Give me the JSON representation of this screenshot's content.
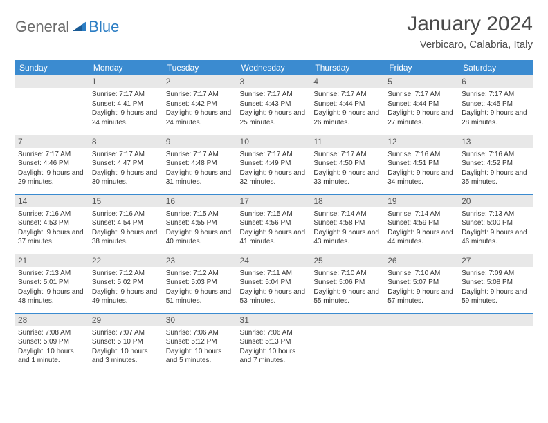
{
  "logo": {
    "general": "General",
    "blue": "Blue"
  },
  "title": "January 2024",
  "location": "Verbicaro, Calabria, Italy",
  "colors": {
    "header_bg": "#3b8bd0",
    "header_text": "#ffffff",
    "daynum_bg": "#e8e8e8",
    "border": "#3b8bd0",
    "text": "#333333"
  },
  "weekdays": [
    "Sunday",
    "Monday",
    "Tuesday",
    "Wednesday",
    "Thursday",
    "Friday",
    "Saturday"
  ],
  "weeks": [
    [
      {
        "n": "",
        "sunrise": "",
        "sunset": "",
        "daylight": ""
      },
      {
        "n": "1",
        "sunrise": "Sunrise: 7:17 AM",
        "sunset": "Sunset: 4:41 PM",
        "daylight": "Daylight: 9 hours and 24 minutes."
      },
      {
        "n": "2",
        "sunrise": "Sunrise: 7:17 AM",
        "sunset": "Sunset: 4:42 PM",
        "daylight": "Daylight: 9 hours and 24 minutes."
      },
      {
        "n": "3",
        "sunrise": "Sunrise: 7:17 AM",
        "sunset": "Sunset: 4:43 PM",
        "daylight": "Daylight: 9 hours and 25 minutes."
      },
      {
        "n": "4",
        "sunrise": "Sunrise: 7:17 AM",
        "sunset": "Sunset: 4:44 PM",
        "daylight": "Daylight: 9 hours and 26 minutes."
      },
      {
        "n": "5",
        "sunrise": "Sunrise: 7:17 AM",
        "sunset": "Sunset: 4:44 PM",
        "daylight": "Daylight: 9 hours and 27 minutes."
      },
      {
        "n": "6",
        "sunrise": "Sunrise: 7:17 AM",
        "sunset": "Sunset: 4:45 PM",
        "daylight": "Daylight: 9 hours and 28 minutes."
      }
    ],
    [
      {
        "n": "7",
        "sunrise": "Sunrise: 7:17 AM",
        "sunset": "Sunset: 4:46 PM",
        "daylight": "Daylight: 9 hours and 29 minutes."
      },
      {
        "n": "8",
        "sunrise": "Sunrise: 7:17 AM",
        "sunset": "Sunset: 4:47 PM",
        "daylight": "Daylight: 9 hours and 30 minutes."
      },
      {
        "n": "9",
        "sunrise": "Sunrise: 7:17 AM",
        "sunset": "Sunset: 4:48 PM",
        "daylight": "Daylight: 9 hours and 31 minutes."
      },
      {
        "n": "10",
        "sunrise": "Sunrise: 7:17 AM",
        "sunset": "Sunset: 4:49 PM",
        "daylight": "Daylight: 9 hours and 32 minutes."
      },
      {
        "n": "11",
        "sunrise": "Sunrise: 7:17 AM",
        "sunset": "Sunset: 4:50 PM",
        "daylight": "Daylight: 9 hours and 33 minutes."
      },
      {
        "n": "12",
        "sunrise": "Sunrise: 7:16 AM",
        "sunset": "Sunset: 4:51 PM",
        "daylight": "Daylight: 9 hours and 34 minutes."
      },
      {
        "n": "13",
        "sunrise": "Sunrise: 7:16 AM",
        "sunset": "Sunset: 4:52 PM",
        "daylight": "Daylight: 9 hours and 35 minutes."
      }
    ],
    [
      {
        "n": "14",
        "sunrise": "Sunrise: 7:16 AM",
        "sunset": "Sunset: 4:53 PM",
        "daylight": "Daylight: 9 hours and 37 minutes."
      },
      {
        "n": "15",
        "sunrise": "Sunrise: 7:16 AM",
        "sunset": "Sunset: 4:54 PM",
        "daylight": "Daylight: 9 hours and 38 minutes."
      },
      {
        "n": "16",
        "sunrise": "Sunrise: 7:15 AM",
        "sunset": "Sunset: 4:55 PM",
        "daylight": "Daylight: 9 hours and 40 minutes."
      },
      {
        "n": "17",
        "sunrise": "Sunrise: 7:15 AM",
        "sunset": "Sunset: 4:56 PM",
        "daylight": "Daylight: 9 hours and 41 minutes."
      },
      {
        "n": "18",
        "sunrise": "Sunrise: 7:14 AM",
        "sunset": "Sunset: 4:58 PM",
        "daylight": "Daylight: 9 hours and 43 minutes."
      },
      {
        "n": "19",
        "sunrise": "Sunrise: 7:14 AM",
        "sunset": "Sunset: 4:59 PM",
        "daylight": "Daylight: 9 hours and 44 minutes."
      },
      {
        "n": "20",
        "sunrise": "Sunrise: 7:13 AM",
        "sunset": "Sunset: 5:00 PM",
        "daylight": "Daylight: 9 hours and 46 minutes."
      }
    ],
    [
      {
        "n": "21",
        "sunrise": "Sunrise: 7:13 AM",
        "sunset": "Sunset: 5:01 PM",
        "daylight": "Daylight: 9 hours and 48 minutes."
      },
      {
        "n": "22",
        "sunrise": "Sunrise: 7:12 AM",
        "sunset": "Sunset: 5:02 PM",
        "daylight": "Daylight: 9 hours and 49 minutes."
      },
      {
        "n": "23",
        "sunrise": "Sunrise: 7:12 AM",
        "sunset": "Sunset: 5:03 PM",
        "daylight": "Daylight: 9 hours and 51 minutes."
      },
      {
        "n": "24",
        "sunrise": "Sunrise: 7:11 AM",
        "sunset": "Sunset: 5:04 PM",
        "daylight": "Daylight: 9 hours and 53 minutes."
      },
      {
        "n": "25",
        "sunrise": "Sunrise: 7:10 AM",
        "sunset": "Sunset: 5:06 PM",
        "daylight": "Daylight: 9 hours and 55 minutes."
      },
      {
        "n": "26",
        "sunrise": "Sunrise: 7:10 AM",
        "sunset": "Sunset: 5:07 PM",
        "daylight": "Daylight: 9 hours and 57 minutes."
      },
      {
        "n": "27",
        "sunrise": "Sunrise: 7:09 AM",
        "sunset": "Sunset: 5:08 PM",
        "daylight": "Daylight: 9 hours and 59 minutes."
      }
    ],
    [
      {
        "n": "28",
        "sunrise": "Sunrise: 7:08 AM",
        "sunset": "Sunset: 5:09 PM",
        "daylight": "Daylight: 10 hours and 1 minute."
      },
      {
        "n": "29",
        "sunrise": "Sunrise: 7:07 AM",
        "sunset": "Sunset: 5:10 PM",
        "daylight": "Daylight: 10 hours and 3 minutes."
      },
      {
        "n": "30",
        "sunrise": "Sunrise: 7:06 AM",
        "sunset": "Sunset: 5:12 PM",
        "daylight": "Daylight: 10 hours and 5 minutes."
      },
      {
        "n": "31",
        "sunrise": "Sunrise: 7:06 AM",
        "sunset": "Sunset: 5:13 PM",
        "daylight": "Daylight: 10 hours and 7 minutes."
      },
      {
        "n": "",
        "sunrise": "",
        "sunset": "",
        "daylight": ""
      },
      {
        "n": "",
        "sunrise": "",
        "sunset": "",
        "daylight": ""
      },
      {
        "n": "",
        "sunrise": "",
        "sunset": "",
        "daylight": ""
      }
    ]
  ]
}
